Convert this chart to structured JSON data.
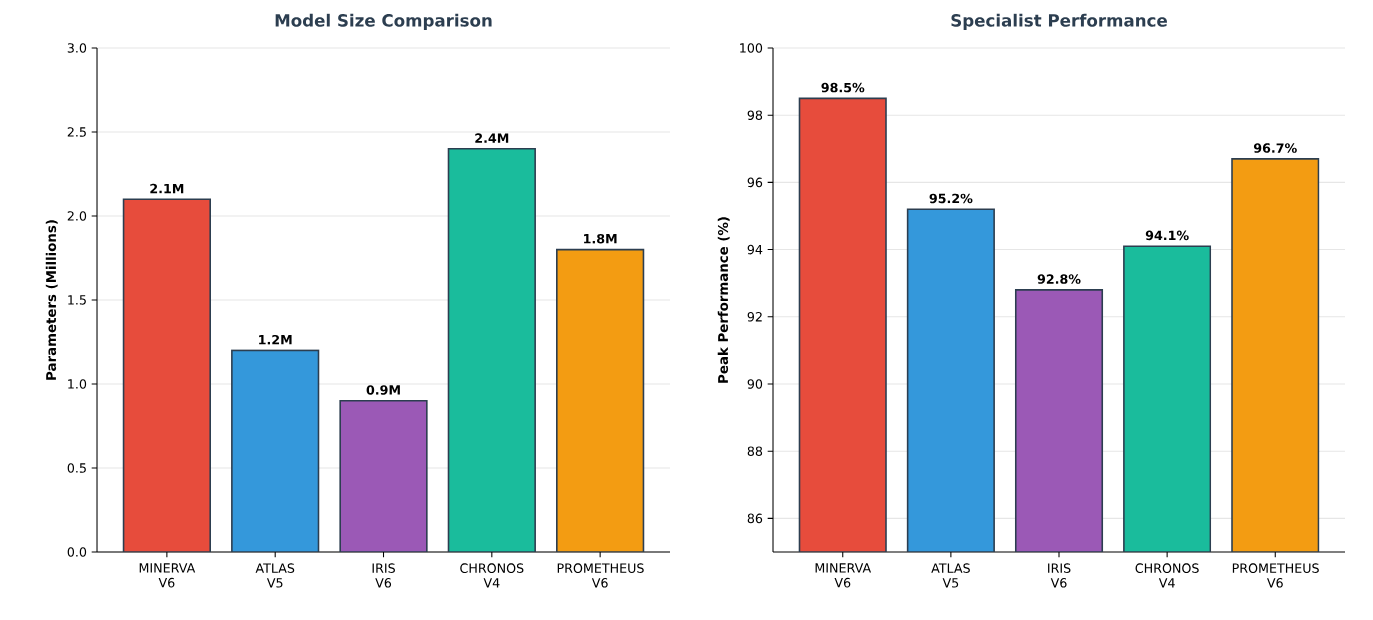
{
  "chart_data": [
    {
      "type": "bar",
      "title": "Model Size Comparison",
      "ylabel": "Parameters (Millions)",
      "categories": [
        "MINERVA V6",
        "ATLAS V5",
        "IRIS V6",
        "CHRONOS V4",
        "PROMETHEUS V6"
      ],
      "values": [
        2.1,
        1.2,
        0.9,
        2.4,
        1.8
      ],
      "colors": [
        "#e74c3c",
        "#3498db",
        "#9b59b6",
        "#1abc9c",
        "#f39c12"
      ],
      "value_labels": [
        "2.1M",
        "1.2M",
        "0.9M",
        "2.4M",
        "1.8M"
      ],
      "ylim": [
        0,
        3
      ],
      "yticks": [
        {
          "value": 0,
          "label": "0.0"
        },
        {
          "value": 0.5,
          "label": "0.5"
        },
        {
          "value": 1,
          "label": "1.0"
        },
        {
          "value": 1.5,
          "label": "1.5"
        },
        {
          "value": 2,
          "label": "2.0"
        },
        {
          "value": 2.5,
          "label": "2.5"
        },
        {
          "value": 3,
          "label": "3.0"
        }
      ],
      "grid": "y"
    },
    {
      "type": "bar",
      "title": "Specialist Performance",
      "ylabel": "Peak Performance (%)",
      "categories": [
        "MINERVA V6",
        "ATLAS V5",
        "IRIS V6",
        "CHRONOS V4",
        "PROMETHEUS V6"
      ],
      "values": [
        98.5,
        95.2,
        92.8,
        94.1,
        96.7
      ],
      "colors": [
        "#e74c3c",
        "#3498db",
        "#9b59b6",
        "#1abc9c",
        "#f39c12"
      ],
      "value_labels": [
        "98.5%",
        "95.2%",
        "92.8%",
        "94.1%",
        "96.7%"
      ],
      "ylim": [
        85,
        100
      ],
      "yticks": [
        86,
        88,
        90,
        92,
        94,
        96,
        98,
        100
      ],
      "grid": "y"
    }
  ]
}
